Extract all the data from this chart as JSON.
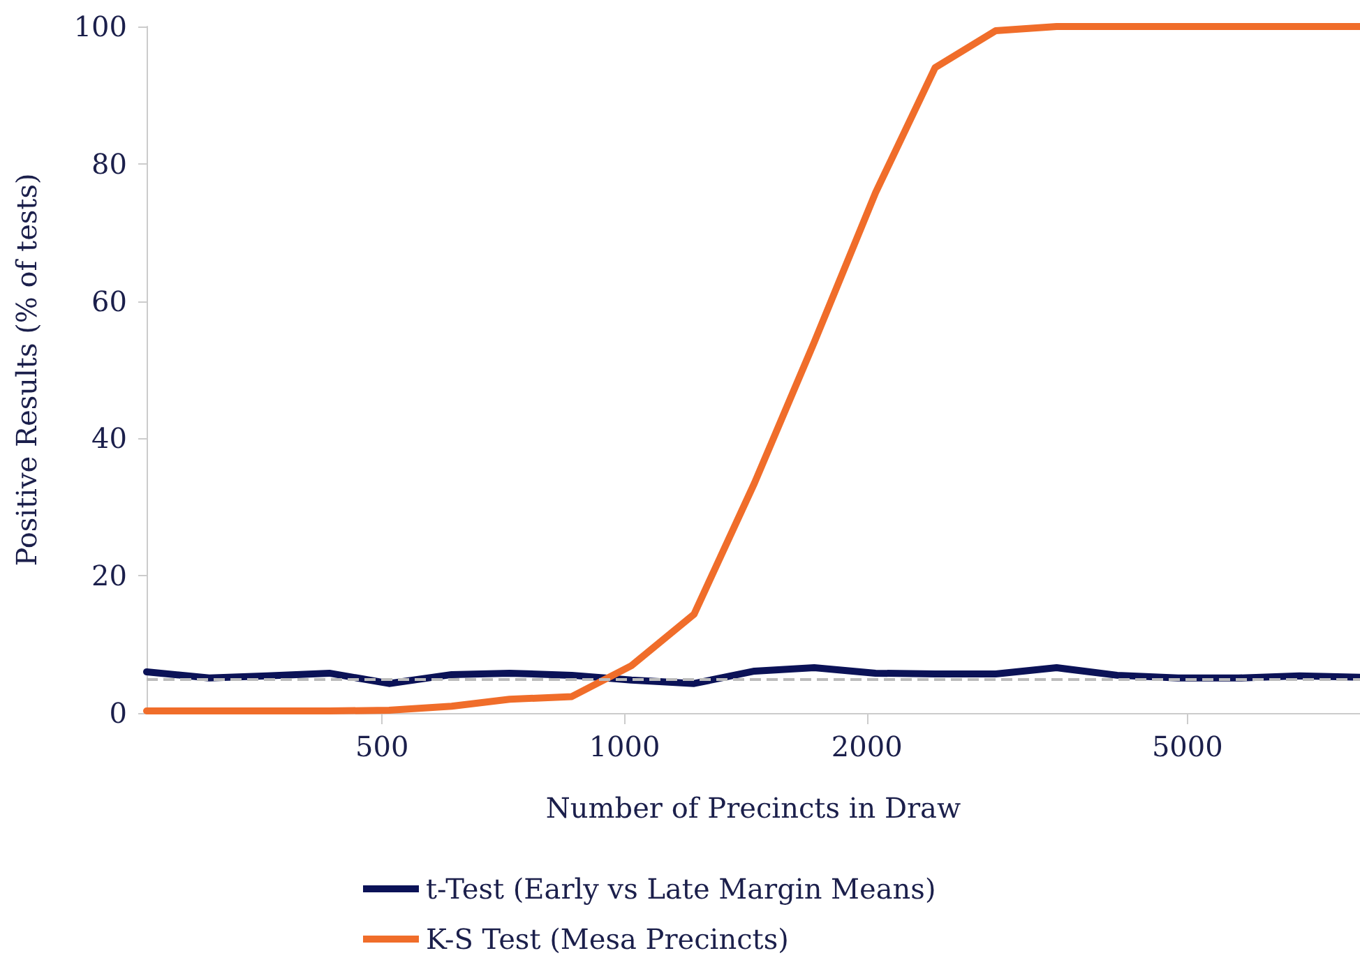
{
  "chart_data": {
    "type": "line",
    "xlabel": "Number of Precincts in Draw",
    "ylabel": "Positive Results (% of tests)",
    "x": [
      255,
      305,
      360,
      430,
      510,
      610,
      720,
      860,
      1020,
      1220,
      1450,
      1720,
      2050,
      2430,
      2890,
      3440,
      4090,
      4870,
      5790,
      6890,
      8190
    ],
    "series": [
      {
        "name": "t-Test (Early vs Late Margin Means)",
        "color": "#0b1257",
        "values": [
          6.0,
          5.1,
          5.4,
          5.8,
          4.3,
          5.6,
          5.8,
          5.5,
          4.8,
          4.3,
          6.1,
          6.6,
          5.8,
          5.7,
          5.7,
          6.6,
          5.5,
          5.1,
          5.1,
          5.4,
          5.2
        ]
      },
      {
        "name": "K-S Test (Mesa Precincts)",
        "color": "#f06d2a",
        "values": [
          0.3,
          0.3,
          0.3,
          0.3,
          0.4,
          1.0,
          2.0,
          2.4,
          6.9,
          14.4,
          33.5,
          54,
          75.8,
          94,
          99.4,
          100,
          100,
          100,
          100,
          100,
          100
        ]
      }
    ],
    "xlim": [
      255,
      8190
    ],
    "xticks": [
      500,
      1000,
      2000,
      5000
    ],
    "ylim": [
      0,
      100
    ],
    "yticks": [
      0,
      20,
      40,
      60,
      80,
      100
    ],
    "log": "x",
    "grid": false,
    "legend": "bottom",
    "marker": "none",
    "line_style": "solid",
    "ref_lines": [
      {
        "axis": "y",
        "value": 5,
        "color": "#bbbbbb",
        "line_style": "dashed"
      }
    ]
  }
}
